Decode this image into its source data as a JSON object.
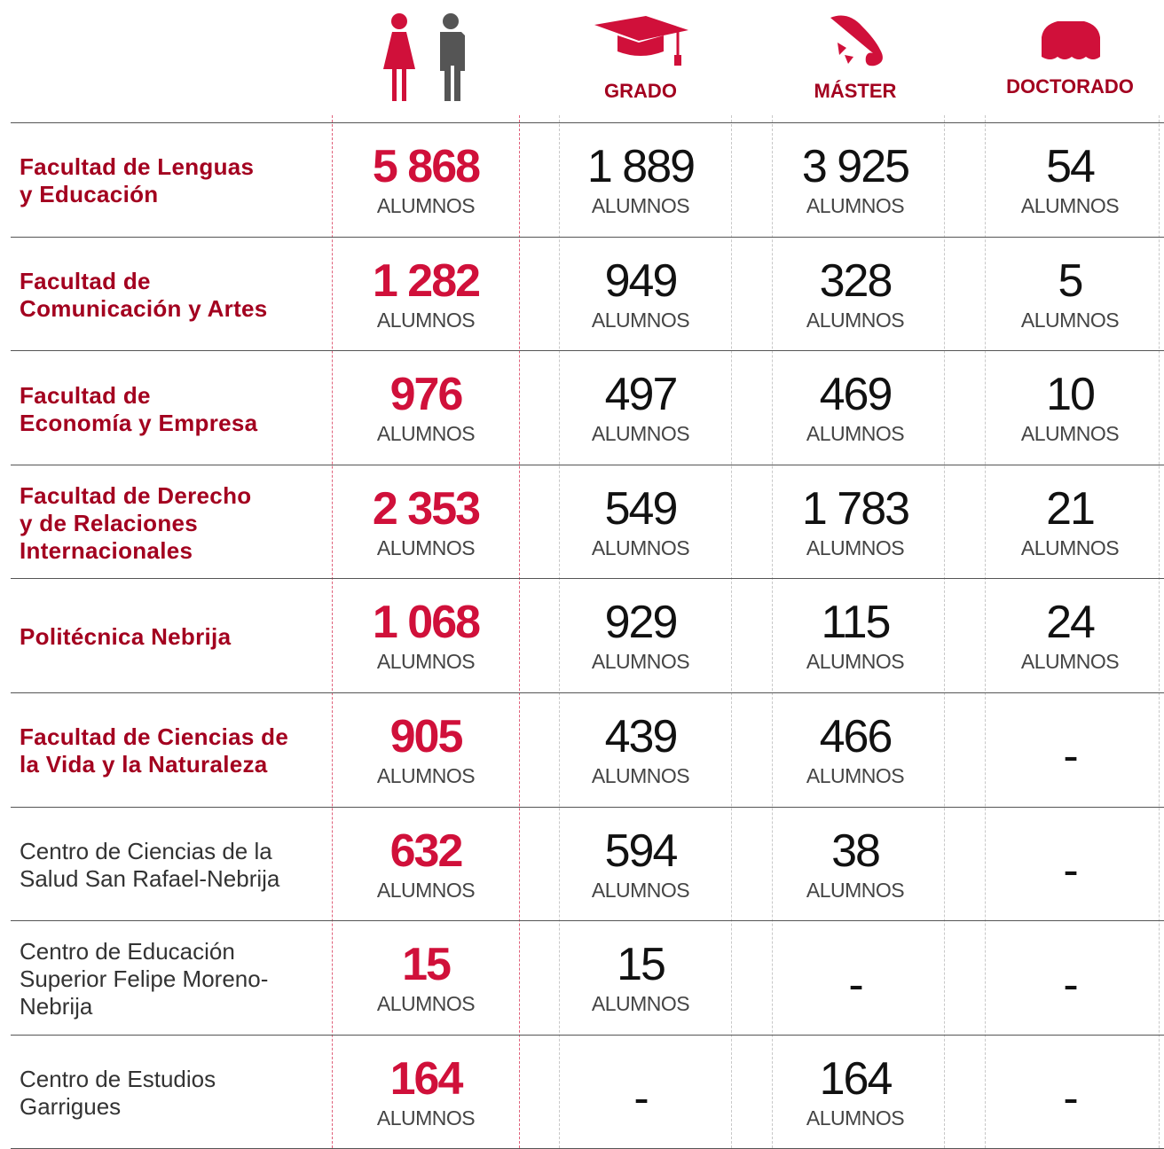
{
  "header": {
    "columns": [
      "GRADO",
      "MÁSTER",
      "DOCTORADO"
    ]
  },
  "unit": "ALUMNOS",
  "rows": [
    {
      "label": [
        "Facultad de Lenguas",
        "y Educación"
      ],
      "bold": true,
      "total": "5 868",
      "grado": "1 889",
      "master": "3 925",
      "doctorado": "54"
    },
    {
      "label": [
        "Facultad de",
        "Comunicación y Artes"
      ],
      "bold": true,
      "total": "1 282",
      "grado": "949",
      "master": "328",
      "doctorado": "5"
    },
    {
      "label": [
        "Facultad de",
        "Economía y Empresa"
      ],
      "bold": true,
      "total": "976",
      "grado": "497",
      "master": "469",
      "doctorado": "10"
    },
    {
      "label": [
        "Facultad de Derecho",
        "y de Relaciones",
        "Internacionales"
      ],
      "bold": true,
      "total": "2 353",
      "grado": "549",
      "master": "1 783",
      "doctorado": "21"
    },
    {
      "label": [
        "Politécnica Nebrija"
      ],
      "bold": true,
      "total": "1 068",
      "grado": "929",
      "master": "115",
      "doctorado": "24"
    },
    {
      "label": [
        "Facultad de Ciencias de",
        "la Vida y la Naturaleza"
      ],
      "bold": true,
      "total": "905",
      "grado": "439",
      "master": "466",
      "doctorado": "-"
    },
    {
      "label": [
        "Centro de Ciencias de la",
        "Salud San Rafael-Nebrija"
      ],
      "bold": false,
      "total": "632",
      "grado": "594",
      "master": "38",
      "doctorado": "-"
    },
    {
      "label": [
        "Centro de Educación",
        "Superior Felipe Moreno-",
        "Nebrija"
      ],
      "bold": false,
      "total": "15",
      "grado": "15",
      "master": "-",
      "doctorado": "-"
    },
    {
      "label": [
        "Centro de Estudios",
        "Garrigues"
      ],
      "bold": false,
      "total": "164",
      "grado": "-",
      "master": "164",
      "doctorado": "-"
    }
  ]
}
